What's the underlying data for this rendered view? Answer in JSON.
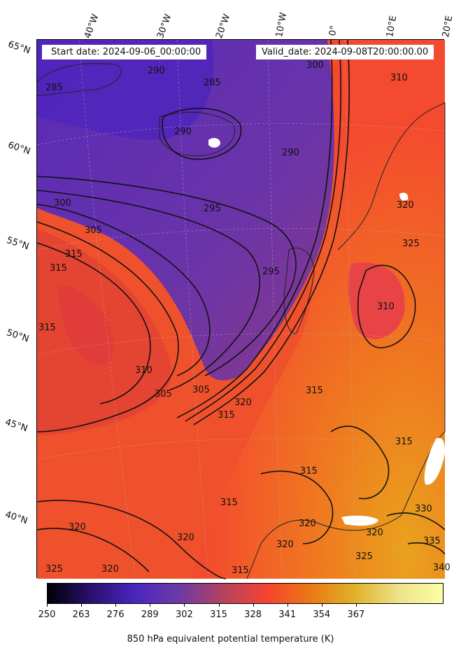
{
  "header": {
    "start_date": "Start date: 2024-09-06_00:00:00",
    "valid_date": "Valid_date: 2024-09-08T20:00:00.00"
  },
  "longitude_labels": [
    "40°W",
    "30°W",
    "20°W",
    "10°W",
    "0°",
    "10°E",
    "20°E"
  ],
  "latitude_labels": [
    "65°N",
    "60°N",
    "55°N",
    "50°N",
    "45°N",
    "40°N"
  ],
  "contour_labels": [
    "285",
    "290",
    "285",
    "290",
    "290",
    "300",
    "310",
    "295",
    "300",
    "305",
    "315",
    "315",
    "315",
    "295",
    "310",
    "305",
    "305",
    "315",
    "320",
    "310",
    "320",
    "325",
    "315",
    "315",
    "315",
    "320",
    "320",
    "325",
    "320",
    "320",
    "320",
    "325",
    "330",
    "335",
    "340",
    "320",
    "315",
    "315"
  ],
  "colorbar": {
    "ticks": [
      "250",
      "263",
      "276",
      "289",
      "302",
      "315",
      "328",
      "341",
      "354",
      "367"
    ],
    "label": "850 hPa equivalent potential temperature (K)",
    "colors": [
      "#000004",
      "#2a1070",
      "#4b26be",
      "#6b3aa6",
      "#b4435f",
      "#f7432f",
      "#ea7a13",
      "#e0b22a",
      "#eee28a",
      "#fcffa4"
    ]
  }
}
